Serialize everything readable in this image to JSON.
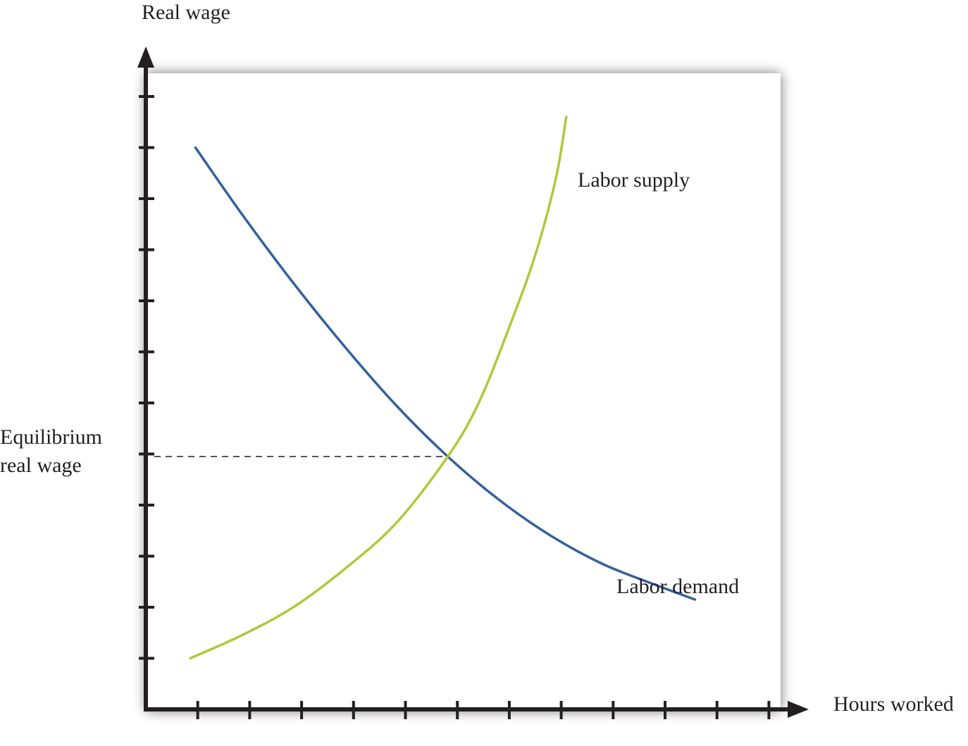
{
  "chart_data": {
    "type": "line",
    "xlabel": "Hours worked",
    "ylabel": "Real wage",
    "grid": false,
    "xlim": [
      0,
      12.5
    ],
    "ylim": [
      0,
      12.5
    ],
    "x_ticks": [
      1,
      2,
      3,
      4,
      5,
      6,
      7,
      8,
      9,
      10,
      11,
      12
    ],
    "y_ticks": [
      1,
      2,
      3,
      4,
      5,
      6,
      7,
      8,
      9,
      10,
      11,
      12
    ],
    "series": [
      {
        "name": "Labor demand",
        "color": "#34619c",
        "points": [
          [
            1.1,
            11.0
          ],
          [
            2.0,
            9.7
          ],
          [
            3.0,
            8.35
          ],
          [
            4.0,
            7.1
          ],
          [
            5.0,
            5.95
          ],
          [
            6.0,
            4.95
          ],
          [
            7.0,
            4.1
          ],
          [
            8.0,
            3.4
          ],
          [
            9.0,
            2.85
          ],
          [
            10.0,
            2.45
          ],
          [
            10.8,
            2.15
          ]
        ]
      },
      {
        "name": "Labor supply",
        "color": "#b2c73b",
        "points": [
          [
            1.0,
            1.0
          ],
          [
            2.0,
            1.45
          ],
          [
            3.0,
            2.0
          ],
          [
            4.0,
            2.75
          ],
          [
            5.0,
            3.65
          ],
          [
            6.0,
            4.95
          ],
          [
            6.6,
            6.0
          ],
          [
            7.2,
            7.5
          ],
          [
            7.7,
            8.9
          ],
          [
            8.1,
            10.4
          ],
          [
            8.3,
            11.6
          ]
        ]
      }
    ],
    "annotations": {
      "equilibrium": {
        "x": 6.0,
        "y": 4.95,
        "label_line1": "Equilibrium",
        "label_line2": "real wage",
        "line_style": "dashed"
      }
    },
    "colors": {
      "axis": "#231f20",
      "plot_background": "#ffffff",
      "shadow": "#9a9a9a"
    }
  }
}
